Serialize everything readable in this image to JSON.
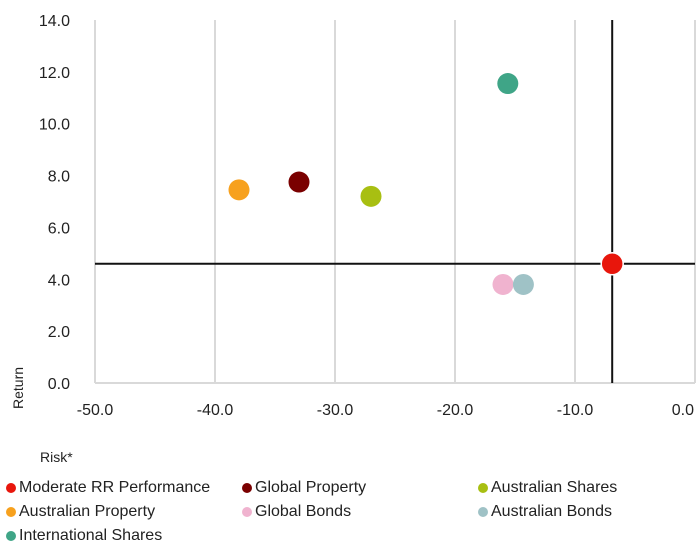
{
  "chart_data": {
    "type": "scatter",
    "xlabel": "Risk*",
    "ylabel": "Return",
    "xlim": [
      -50,
      0
    ],
    "ylim": [
      0,
      14
    ],
    "x_ticks": [
      "-50.0",
      "-40.0",
      "-30.0",
      "-20.0",
      "-10.0",
      "0.0"
    ],
    "y_ticks": [
      "0.0",
      "2.0",
      "4.0",
      "6.0",
      "8.0",
      "10.0",
      "12.0",
      "14.0"
    ],
    "grid": "vertical",
    "legend_position": "bottom",
    "reference_lines": {
      "x": -6.9,
      "y": 4.6
    },
    "series": [
      {
        "name": "Moderate RR Performance",
        "color": "#e8160c",
        "points": [
          {
            "x": -6.9,
            "y": 4.6
          }
        ]
      },
      {
        "name": "Global Property",
        "color": "#7a0000",
        "points": [
          {
            "x": -33.0,
            "y": 7.75
          }
        ]
      },
      {
        "name": "Australian Shares",
        "color": "#a8bf12",
        "points": [
          {
            "x": -27.0,
            "y": 7.2
          }
        ]
      },
      {
        "name": "Australian Property",
        "color": "#f7a11e",
        "points": [
          {
            "x": -38.0,
            "y": 7.45
          }
        ]
      },
      {
        "name": "Global Bonds",
        "color": "#f0b3cf",
        "points": [
          {
            "x": -16.0,
            "y": 3.8
          }
        ]
      },
      {
        "name": "Australian Bonds",
        "color": "#9fc2c6",
        "points": [
          {
            "x": -14.3,
            "y": 3.8
          }
        ]
      },
      {
        "name": "International Shares",
        "color": "#3fa587",
        "points": [
          {
            "x": -15.6,
            "y": 11.55
          }
        ]
      }
    ]
  }
}
